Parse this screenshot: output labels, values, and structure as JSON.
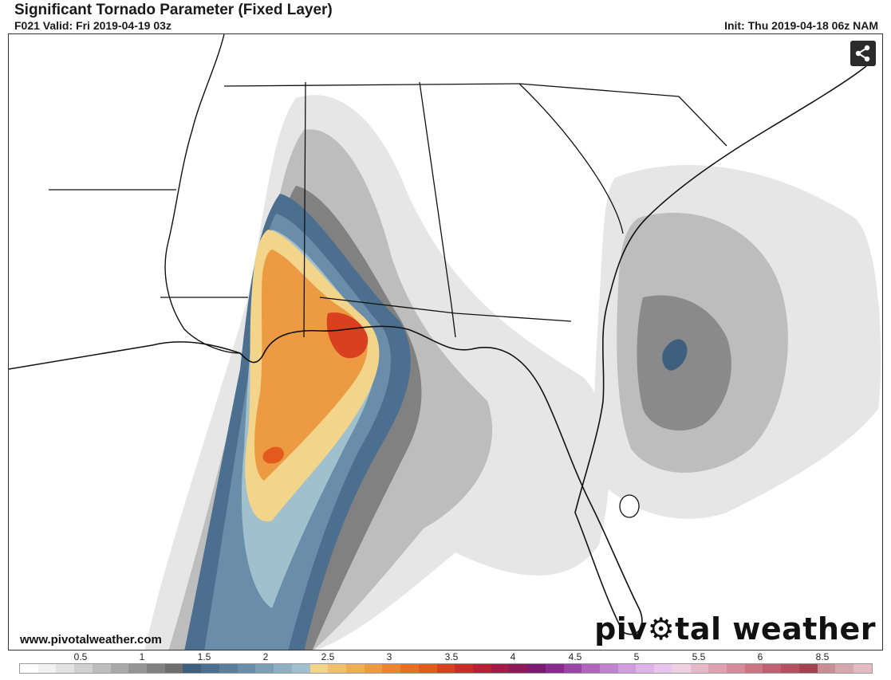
{
  "header": {
    "title": "Significant Tornado Parameter (Fixed Layer)",
    "valid": "F021 Valid: Fri 2019-04-19 03z",
    "init": "Init: Thu 2019-04-18 06z NAM"
  },
  "toolbar": {
    "share_icon": "share-icon"
  },
  "footer": {
    "website": "www.pivotalweather.com",
    "brand_prefix": "piv",
    "brand_suffix": "tal weather",
    "brand_icon": "gear-icon"
  },
  "colorbar": {
    "tick_labels": [
      "0.5",
      "1",
      "1.5",
      "2",
      "2.5",
      "3",
      "3.5",
      "4",
      "4.5",
      "5",
      "5.5",
      "6",
      "8.5"
    ],
    "colors": [
      "#ffffff",
      "#f2f2f2",
      "#e2e2e2",
      "#d0d0d0",
      "#bdbdbd",
      "#a9a9a9",
      "#959595",
      "#818181",
      "#6e6e6e",
      "#3f5f7f",
      "#4c6f8f",
      "#5a7f9c",
      "#6a8ea9",
      "#7c9fb6",
      "#8eb0c2",
      "#a0c0ce",
      "#f2d48a",
      "#efc16c",
      "#eeae55",
      "#ec9b42",
      "#ea8630",
      "#e66f22",
      "#e25a1c",
      "#d9401f",
      "#cc2c28",
      "#b91f35",
      "#a41b47",
      "#8c1a5a",
      "#7c1a73",
      "#8a2a8f",
      "#9b46a6",
      "#b065bc",
      "#c282cf",
      "#d39cde",
      "#e0b3e8",
      "#e9c5ee",
      "#eed0e0",
      "#e7b8c8",
      "#dfa1b1",
      "#d68b9b",
      "#cc7585",
      "#c06171",
      "#b45161",
      "#a34352",
      "#c98d96",
      "#d8a7ad",
      "#e3bcc1"
    ]
  },
  "map": {
    "region": "Southeastern United States",
    "fill_colors": {
      "gray_light": "#e6e6e6",
      "gray_mid": "#bdbdbd",
      "gray_dark": "#8a8a8a",
      "blue_dark": "#3f5f7f",
      "blue_mid": "#6a8ea9",
      "blue_light": "#a0c0ce",
      "yellow": "#f2d48a",
      "orange": "#ea8630",
      "red": "#d9401f"
    }
  }
}
